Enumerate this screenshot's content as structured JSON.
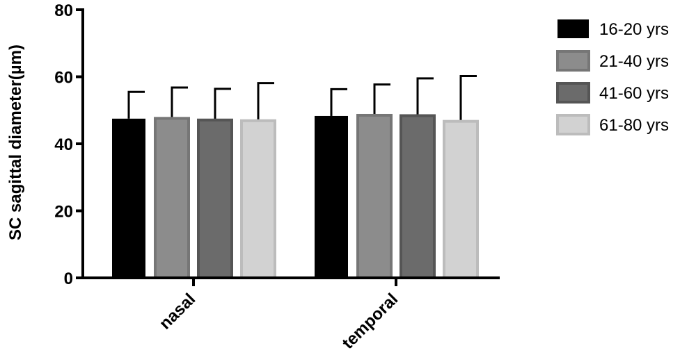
{
  "chart_data": {
    "type": "bar",
    "title": "",
    "xlabel": "",
    "ylabel": "SC sagittal diameter(µm)",
    "ylim": [
      0,
      80
    ],
    "yticks": [
      0,
      20,
      40,
      60,
      80
    ],
    "ytick_labels": [
      "0",
      "20",
      "40",
      "60",
      "80"
    ],
    "grid": false,
    "legend_position": "right",
    "error_bars": true,
    "categories": [
      "nasal",
      "temporal"
    ],
    "series": [
      {
        "name": "16-20 yrs",
        "color": "#000000",
        "values": [
          47.5,
          48.3
        ],
        "errors": [
          8.0,
          8.0
        ]
      },
      {
        "name": "21-40 yrs",
        "color": "#8c8c8c",
        "values": [
          47.6,
          48.5
        ],
        "errors": [
          9.2,
          9.2
        ]
      },
      {
        "name": "41-60 yrs",
        "color": "#6b6b6b",
        "values": [
          47.1,
          48.4
        ],
        "errors": [
          9.3,
          11.1
        ]
      },
      {
        "name": "61-80 yrs",
        "color": "#d2d2d2",
        "values": [
          46.9,
          46.7
        ],
        "errors": [
          11.2,
          13.5
        ]
      }
    ]
  }
}
